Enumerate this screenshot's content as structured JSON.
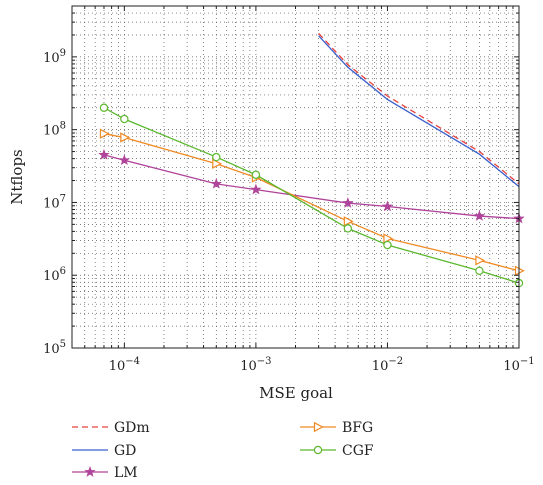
{
  "chart_data": {
    "type": "line",
    "title": "",
    "xlabel": "MSE goal",
    "ylabel": "Ntflops",
    "x_scale": "log",
    "y_scale": "log",
    "xlim": [
      4e-05,
      0.1
    ],
    "ylim": [
      100000,
      5000000000
    ],
    "x_ticks": [
      {
        "value": 0.0001,
        "base": "10",
        "exp": "−4"
      },
      {
        "value": 0.001,
        "base": "10",
        "exp": "−3"
      },
      {
        "value": 0.01,
        "base": "10",
        "exp": "−2"
      },
      {
        "value": 0.1,
        "base": "10",
        "exp": "−1"
      }
    ],
    "y_ticks": [
      {
        "value": 100000,
        "base": "10",
        "exp": "5"
      },
      {
        "value": 1000000,
        "base": "10",
        "exp": "6"
      },
      {
        "value": 10000000,
        "base": "10",
        "exp": "7"
      },
      {
        "value": 100000000,
        "base": "10",
        "exp": "8"
      },
      {
        "value": 1000000000,
        "base": "10",
        "exp": "9"
      }
    ],
    "grid": "dotted minor and major",
    "legend_position": "below plot",
    "series": [
      {
        "name": "GDm",
        "color": "#e8413c",
        "dash": "dashed",
        "marker": "none",
        "x": [
          0.003,
          0.005,
          0.01,
          0.05,
          0.1
        ],
        "y": [
          2100000000,
          780000000,
          290000000,
          50000000,
          18000000
        ]
      },
      {
        "name": "GD",
        "color": "#3a5fcd",
        "dash": "solid",
        "marker": "none",
        "x": [
          0.003,
          0.005,
          0.01,
          0.05,
          0.1
        ],
        "y": [
          1950000000,
          720000000,
          260000000,
          46000000,
          16500000
        ]
      },
      {
        "name": "LM",
        "color": "#b0449a",
        "dash": "solid",
        "marker": "star",
        "x": [
          7e-05,
          0.0001,
          0.0005,
          0.001,
          0.005,
          0.01,
          0.05,
          0.1
        ],
        "y": [
          45000000,
          38000000,
          18000000,
          15000000,
          9800000,
          8800000,
          6500000,
          6000000
        ]
      },
      {
        "name": "BFG",
        "color": "#f08a24",
        "dash": "solid",
        "marker": "triangle-right",
        "x": [
          7e-05,
          0.0001,
          0.0005,
          0.001,
          0.005,
          0.01,
          0.05,
          0.1
        ],
        "y": [
          88000000,
          78000000,
          34000000,
          22000000,
          5500000,
          3200000,
          1600000,
          1150000
        ]
      },
      {
        "name": "CGF",
        "color": "#5cb82e",
        "dash": "solid",
        "marker": "circle",
        "x": [
          7e-05,
          0.0001,
          0.0005,
          0.001,
          0.005,
          0.01,
          0.05,
          0.1
        ],
        "y": [
          200000000,
          140000000,
          42000000,
          24000000,
          4400000,
          2600000,
          1150000,
          780000
        ]
      }
    ]
  }
}
